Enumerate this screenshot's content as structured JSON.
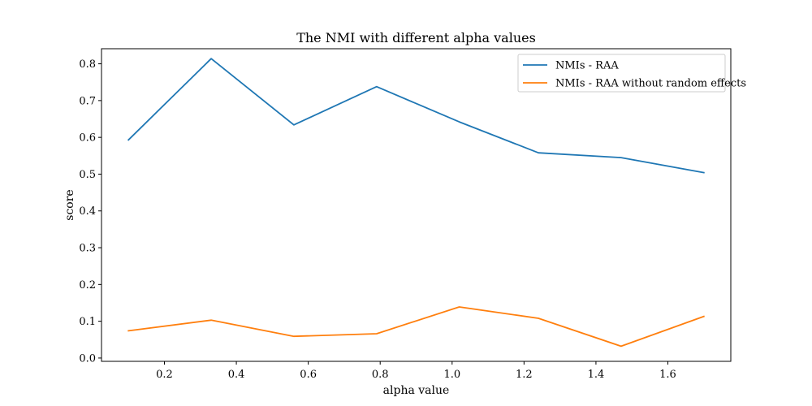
{
  "chart_data": {
    "type": "line",
    "title": "The NMI with different alpha values",
    "xlabel": "alpha value",
    "ylabel": "score",
    "xlim": [
      0.025,
      1.775
    ],
    "ylim": [
      -0.009,
      0.841
    ],
    "xticks": [
      0.2,
      0.4,
      0.6,
      0.8,
      1.0,
      1.2,
      1.4,
      1.6
    ],
    "yticks": [
      0.0,
      0.1,
      0.2,
      0.3,
      0.4,
      0.5,
      0.6,
      0.7,
      0.8
    ],
    "x": [
      0.1,
      0.33,
      0.56,
      0.79,
      1.02,
      1.24,
      1.47,
      1.7
    ],
    "series": [
      {
        "name": "NMIs - RAA",
        "color": "#1f77b4",
        "values": [
          0.593,
          0.814,
          0.634,
          0.738,
          0.642,
          0.558,
          0.545,
          0.504
        ]
      },
      {
        "name": "NMIs - RAA without random effects",
        "color": "#ff7f0e",
        "values": [
          0.074,
          0.103,
          0.059,
          0.066,
          0.139,
          0.108,
          0.032,
          0.113
        ]
      }
    ],
    "grid": false,
    "legend_position": "top-right"
  }
}
